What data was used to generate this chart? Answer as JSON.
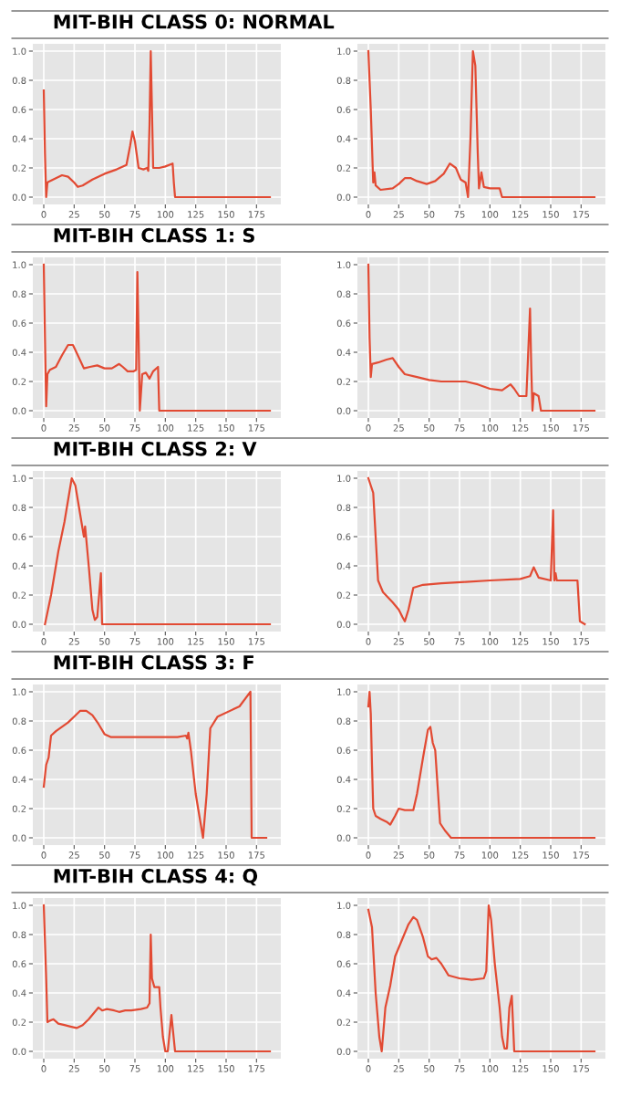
{
  "chart_data": [
    {
      "type": "line",
      "title": "MIT-BIH CLASS 0: NORMAL",
      "color": "#e24a33",
      "grid": true,
      "xlim": [
        -9,
        195
      ],
      "ylim": [
        -0.05,
        1.05
      ],
      "xticks": [
        0,
        25,
        50,
        75,
        100,
        125,
        150,
        175
      ],
      "yticks": [
        {
          "value": 0,
          "label": "0.0"
        },
        {
          "value": 0.2,
          "label": "0.2"
        },
        {
          "value": 0.4,
          "label": "0.4"
        },
        {
          "value": 0.6,
          "label": "0.6"
        },
        {
          "value": 0.8,
          "label": "0.8"
        },
        {
          "value": 1,
          "label": "1.0"
        }
      ],
      "x": [
        0,
        1,
        2,
        3,
        5,
        10,
        15,
        20,
        25,
        28,
        32,
        40,
        50,
        60,
        68,
        71,
        73,
        75,
        78,
        82,
        85,
        86,
        87,
        88,
        89,
        90,
        95,
        100,
        106,
        107,
        108,
        186
      ],
      "values": [
        0.73,
        0.3,
        0.0,
        0.1,
        0.11,
        0.13,
        0.15,
        0.14,
        0.1,
        0.07,
        0.08,
        0.12,
        0.16,
        0.19,
        0.22,
        0.35,
        0.45,
        0.38,
        0.2,
        0.19,
        0.2,
        0.18,
        0.5,
        1.0,
        0.6,
        0.2,
        0.2,
        0.21,
        0.23,
        0.1,
        0.0,
        0.0
      ]
    },
    {
      "type": "line",
      "color": "#e24a33",
      "grid": true,
      "xlim": [
        -9,
        195
      ],
      "ylim": [
        -0.05,
        1.05
      ],
      "xticks": [
        0,
        25,
        50,
        75,
        100,
        125,
        150,
        175
      ],
      "yticks": [
        {
          "value": 0,
          "label": "0.0"
        },
        {
          "value": 0.2,
          "label": "0.2"
        },
        {
          "value": 0.4,
          "label": "0.4"
        },
        {
          "value": 0.6,
          "label": "0.6"
        },
        {
          "value": 0.8,
          "label": "0.8"
        },
        {
          "value": 1,
          "label": "1.0"
        }
      ],
      "x": [
        0,
        2,
        4,
        5,
        6,
        10,
        20,
        25,
        30,
        35,
        40,
        48,
        55,
        62,
        67,
        72,
        76,
        80,
        82,
        84,
        86,
        88,
        90,
        91,
        93,
        95,
        100,
        108,
        110,
        186
      ],
      "values": [
        1.0,
        0.6,
        0.1,
        0.17,
        0.08,
        0.05,
        0.06,
        0.09,
        0.13,
        0.13,
        0.11,
        0.09,
        0.11,
        0.16,
        0.23,
        0.2,
        0.12,
        0.1,
        0.0,
        0.4,
        1.0,
        0.9,
        0.3,
        0.06,
        0.17,
        0.07,
        0.06,
        0.06,
        0.0,
        0.0
      ]
    },
    {
      "type": "line",
      "title": "MIT-BIH CLASS 1: S",
      "color": "#e24a33",
      "grid": true,
      "xlim": [
        -9,
        195
      ],
      "ylim": [
        -0.05,
        1.05
      ],
      "xticks": [
        0,
        25,
        50,
        75,
        100,
        125,
        150,
        175
      ],
      "yticks": [
        {
          "value": 0,
          "label": "0.0"
        },
        {
          "value": 0.2,
          "label": "0.2"
        },
        {
          "value": 0.4,
          "label": "0.4"
        },
        {
          "value": 0.6,
          "label": "0.6"
        },
        {
          "value": 0.8,
          "label": "0.8"
        },
        {
          "value": 1,
          "label": "1.0"
        }
      ],
      "x": [
        0,
        1,
        2,
        3,
        5,
        10,
        15,
        20,
        24,
        28,
        33,
        38,
        44,
        50,
        56,
        62,
        65,
        69,
        74,
        76,
        77,
        78,
        79,
        81,
        84,
        87,
        90,
        94,
        95,
        186
      ],
      "values": [
        1.0,
        0.5,
        0.03,
        0.25,
        0.28,
        0.3,
        0.38,
        0.45,
        0.45,
        0.38,
        0.29,
        0.3,
        0.31,
        0.29,
        0.29,
        0.32,
        0.3,
        0.27,
        0.27,
        0.28,
        0.95,
        0.5,
        0.0,
        0.25,
        0.26,
        0.22,
        0.27,
        0.3,
        0.0,
        0.0
      ]
    },
    {
      "type": "line",
      "color": "#e24a33",
      "grid": true,
      "xlim": [
        -9,
        195
      ],
      "ylim": [
        -0.05,
        1.05
      ],
      "xticks": [
        0,
        25,
        50,
        75,
        100,
        125,
        150,
        175
      ],
      "yticks": [
        {
          "value": 0,
          "label": "0.0"
        },
        {
          "value": 0.2,
          "label": "0.2"
        },
        {
          "value": 0.4,
          "label": "0.4"
        },
        {
          "value": 0.6,
          "label": "0.6"
        },
        {
          "value": 0.8,
          "label": "0.8"
        },
        {
          "value": 1,
          "label": "1.0"
        }
      ],
      "x": [
        0,
        1,
        2,
        3,
        8,
        15,
        20,
        25,
        30,
        40,
        50,
        60,
        70,
        80,
        90,
        100,
        110,
        117,
        120,
        124,
        130,
        133,
        134,
        135,
        136,
        140,
        141,
        142,
        186
      ],
      "values": [
        1.0,
        0.5,
        0.23,
        0.32,
        0.33,
        0.35,
        0.36,
        0.3,
        0.25,
        0.23,
        0.21,
        0.2,
        0.2,
        0.2,
        0.18,
        0.15,
        0.14,
        0.18,
        0.15,
        0.1,
        0.1,
        0.7,
        0.3,
        0.0,
        0.12,
        0.1,
        0.05,
        0.0,
        0.0
      ]
    },
    {
      "type": "line",
      "title": "MIT-BIH CLASS 2: V",
      "color": "#e24a33",
      "grid": true,
      "xlim": [
        -9,
        195
      ],
      "ylim": [
        -0.05,
        1.05
      ],
      "xticks": [
        0,
        25,
        50,
        75,
        100,
        125,
        150,
        175
      ],
      "yticks": [
        {
          "value": 0,
          "label": "0.0"
        },
        {
          "value": 0.2,
          "label": "0.2"
        },
        {
          "value": 0.4,
          "label": "0.4"
        },
        {
          "value": 0.6,
          "label": "0.6"
        },
        {
          "value": 0.8,
          "label": "0.8"
        },
        {
          "value": 1,
          "label": "1.0"
        }
      ],
      "x": [
        1,
        6,
        12,
        17,
        23,
        26,
        30,
        33,
        34,
        35,
        37,
        40,
        42,
        44,
        47,
        48,
        186
      ],
      "values": [
        0.0,
        0.2,
        0.5,
        0.7,
        1.0,
        0.95,
        0.75,
        0.6,
        0.67,
        0.58,
        0.4,
        0.1,
        0.03,
        0.05,
        0.35,
        0.0,
        0.0
      ]
    },
    {
      "type": "line",
      "color": "#e24a33",
      "grid": true,
      "xlim": [
        -9,
        195
      ],
      "ylim": [
        -0.05,
        1.05
      ],
      "xticks": [
        0,
        25,
        50,
        75,
        100,
        125,
        150,
        175
      ],
      "yticks": [
        {
          "value": 0,
          "label": "0.0"
        },
        {
          "value": 0.2,
          "label": "0.2"
        },
        {
          "value": 0.4,
          "label": "0.4"
        },
        {
          "value": 0.6,
          "label": "0.6"
        },
        {
          "value": 0.8,
          "label": "0.8"
        },
        {
          "value": 1,
          "label": "1.0"
        }
      ],
      "x": [
        0,
        2,
        4,
        6,
        8,
        12,
        20,
        25,
        28,
        30,
        33,
        37,
        45,
        60,
        80,
        100,
        125,
        133,
        136,
        140,
        150,
        152,
        153,
        154,
        155,
        158,
        172,
        174,
        178
      ],
      "values": [
        1.0,
        0.95,
        0.9,
        0.6,
        0.3,
        0.22,
        0.15,
        0.1,
        0.05,
        0.02,
        0.1,
        0.25,
        0.27,
        0.28,
        0.29,
        0.3,
        0.31,
        0.33,
        0.39,
        0.32,
        0.3,
        0.78,
        0.3,
        0.35,
        0.3,
        0.3,
        0.3,
        0.02,
        0.0
      ]
    },
    {
      "type": "line",
      "title": "MIT-BIH CLASS 3: F",
      "color": "#e24a33",
      "grid": true,
      "xlim": [
        -9,
        195
      ],
      "ylim": [
        -0.05,
        1.05
      ],
      "xticks": [
        0,
        25,
        50,
        75,
        100,
        125,
        150,
        175
      ],
      "yticks": [
        {
          "value": 0,
          "label": "0.0"
        },
        {
          "value": 0.2,
          "label": "0.2"
        },
        {
          "value": 0.4,
          "label": "0.4"
        },
        {
          "value": 0.6,
          "label": "0.6"
        },
        {
          "value": 0.8,
          "label": "0.8"
        },
        {
          "value": 1,
          "label": "1.0"
        }
      ],
      "x": [
        0,
        2,
        4,
        6,
        10,
        15,
        20,
        25,
        30,
        35,
        40,
        45,
        50,
        55,
        80,
        110,
        117,
        118,
        119,
        121,
        125,
        131,
        134,
        137,
        143,
        161,
        170,
        171,
        183
      ],
      "values": [
        0.35,
        0.5,
        0.55,
        0.7,
        0.73,
        0.76,
        0.79,
        0.83,
        0.87,
        0.87,
        0.84,
        0.78,
        0.71,
        0.69,
        0.69,
        0.69,
        0.7,
        0.68,
        0.72,
        0.6,
        0.3,
        0.0,
        0.3,
        0.75,
        0.83,
        0.9,
        1.0,
        0.0,
        0.0
      ]
    },
    {
      "type": "line",
      "color": "#e24a33",
      "grid": true,
      "xlim": [
        -9,
        195
      ],
      "ylim": [
        -0.05,
        1.05
      ],
      "xticks": [
        0,
        25,
        50,
        75,
        100,
        125,
        150,
        175
      ],
      "yticks": [
        {
          "value": 0,
          "label": "0.0"
        },
        {
          "value": 0.2,
          "label": "0.2"
        },
        {
          "value": 0.4,
          "label": "0.4"
        },
        {
          "value": 0.6,
          "label": "0.6"
        },
        {
          "value": 0.8,
          "label": "0.8"
        },
        {
          "value": 1,
          "label": "1.0"
        }
      ],
      "x": [
        0,
        1,
        2,
        3,
        4,
        6,
        10,
        15,
        18,
        22,
        25,
        30,
        37,
        40,
        45,
        49,
        51,
        53,
        55,
        57,
        59,
        63,
        68,
        186
      ],
      "values": [
        0.9,
        1.0,
        0.85,
        0.5,
        0.2,
        0.15,
        0.13,
        0.11,
        0.09,
        0.15,
        0.2,
        0.19,
        0.19,
        0.3,
        0.55,
        0.74,
        0.76,
        0.65,
        0.6,
        0.35,
        0.1,
        0.05,
        0.0,
        0.0
      ]
    },
    {
      "type": "line",
      "title": "MIT-BIH CLASS 4: Q",
      "color": "#e24a33",
      "grid": true,
      "xlim": [
        -9,
        195
      ],
      "ylim": [
        -0.05,
        1.05
      ],
      "xticks": [
        0,
        25,
        50,
        75,
        100,
        125,
        150,
        175
      ],
      "yticks": [
        {
          "value": 0,
          "label": "0.0"
        },
        {
          "value": 0.2,
          "label": "0.2"
        },
        {
          "value": 0.4,
          "label": "0.4"
        },
        {
          "value": 0.6,
          "label": "0.6"
        },
        {
          "value": 0.8,
          "label": "0.8"
        },
        {
          "value": 1,
          "label": "1.0"
        }
      ],
      "x": [
        0,
        2,
        3,
        5,
        8,
        12,
        17,
        22,
        27,
        32,
        37,
        42,
        45,
        48,
        52,
        58,
        62,
        67,
        72,
        80,
        85,
        87,
        88,
        89,
        91,
        95,
        96,
        98,
        100,
        102,
        105,
        108,
        186
      ],
      "values": [
        1.0,
        0.5,
        0.2,
        0.21,
        0.22,
        0.19,
        0.18,
        0.17,
        0.16,
        0.18,
        0.22,
        0.27,
        0.3,
        0.28,
        0.29,
        0.28,
        0.27,
        0.28,
        0.28,
        0.29,
        0.3,
        0.33,
        0.8,
        0.5,
        0.44,
        0.44,
        0.3,
        0.1,
        0.0,
        0.0,
        0.25,
        0.0,
        0.0
      ]
    },
    {
      "type": "line",
      "color": "#e24a33",
      "grid": true,
      "xlim": [
        -9,
        195
      ],
      "ylim": [
        -0.05,
        1.05
      ],
      "xticks": [
        0,
        25,
        50,
        75,
        100,
        125,
        150,
        175
      ],
      "yticks": [
        {
          "value": 0,
          "label": "0.0"
        },
        {
          "value": 0.2,
          "label": "0.2"
        },
        {
          "value": 0.4,
          "label": "0.4"
        },
        {
          "value": 0.6,
          "label": "0.6"
        },
        {
          "value": 0.8,
          "label": "0.8"
        },
        {
          "value": 1,
          "label": "1.0"
        }
      ],
      "x": [
        0,
        3,
        6,
        9,
        11,
        14,
        18,
        22,
        28,
        33,
        37,
        40,
        45,
        49,
        52,
        56,
        60,
        66,
        75,
        85,
        95,
        97,
        99,
        101,
        104,
        108,
        110,
        112,
        114,
        116,
        118,
        120,
        186
      ],
      "values": [
        0.97,
        0.85,
        0.4,
        0.1,
        0.0,
        0.3,
        0.45,
        0.65,
        0.77,
        0.87,
        0.92,
        0.9,
        0.78,
        0.65,
        0.63,
        0.64,
        0.6,
        0.52,
        0.5,
        0.49,
        0.5,
        0.55,
        1.0,
        0.9,
        0.6,
        0.3,
        0.1,
        0.02,
        0.02,
        0.3,
        0.38,
        0.0,
        0.0
      ]
    }
  ]
}
